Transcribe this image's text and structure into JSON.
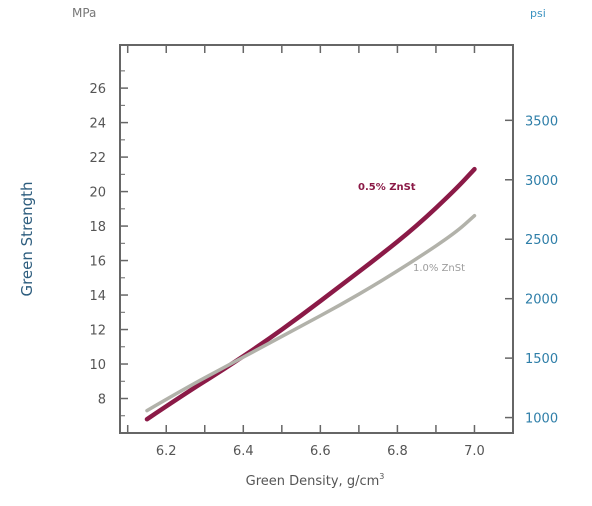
{
  "chart_data": {
    "type": "line",
    "title": "",
    "xlabel": "Green Density, g/cm",
    "xlabel_superscript": "3",
    "ylabel": "Green Strength",
    "y_unit_left": "MPa",
    "y_unit_right": "psi",
    "xlim": [
      6.08,
      7.1
    ],
    "ylim": [
      6.0,
      28.5
    ],
    "x_ticks": [
      "6.2",
      "6.4",
      "6.6",
      "6.8",
      "7.0"
    ],
    "y_ticks_left": [
      "8",
      "10",
      "12",
      "14",
      "16",
      "18",
      "20",
      "22",
      "24",
      "26"
    ],
    "y_ticks_right": [
      "1000",
      "1500",
      "2000",
      "2500",
      "3000",
      "3500"
    ],
    "series": [
      {
        "name": "0.5% ZnSt",
        "color": "#8b1a47",
        "x": [
          6.15,
          6.25,
          6.35,
          6.45,
          6.55,
          6.65,
          6.75,
          6.85,
          6.95,
          7.0
        ],
        "y": [
          6.8,
          8.3,
          9.7,
          11.2,
          12.8,
          14.5,
          16.2,
          18.0,
          20.1,
          21.3
        ]
      },
      {
        "name": "1.0% ZnSt",
        "color": "#b2b2aa",
        "x": [
          6.15,
          6.25,
          6.35,
          6.45,
          6.55,
          6.65,
          6.75,
          6.85,
          6.95,
          7.0
        ],
        "y": [
          7.3,
          8.6,
          9.8,
          11.0,
          12.2,
          13.4,
          14.7,
          16.1,
          17.6,
          18.6
        ]
      }
    ],
    "grid": false,
    "legend": "inline labels"
  }
}
